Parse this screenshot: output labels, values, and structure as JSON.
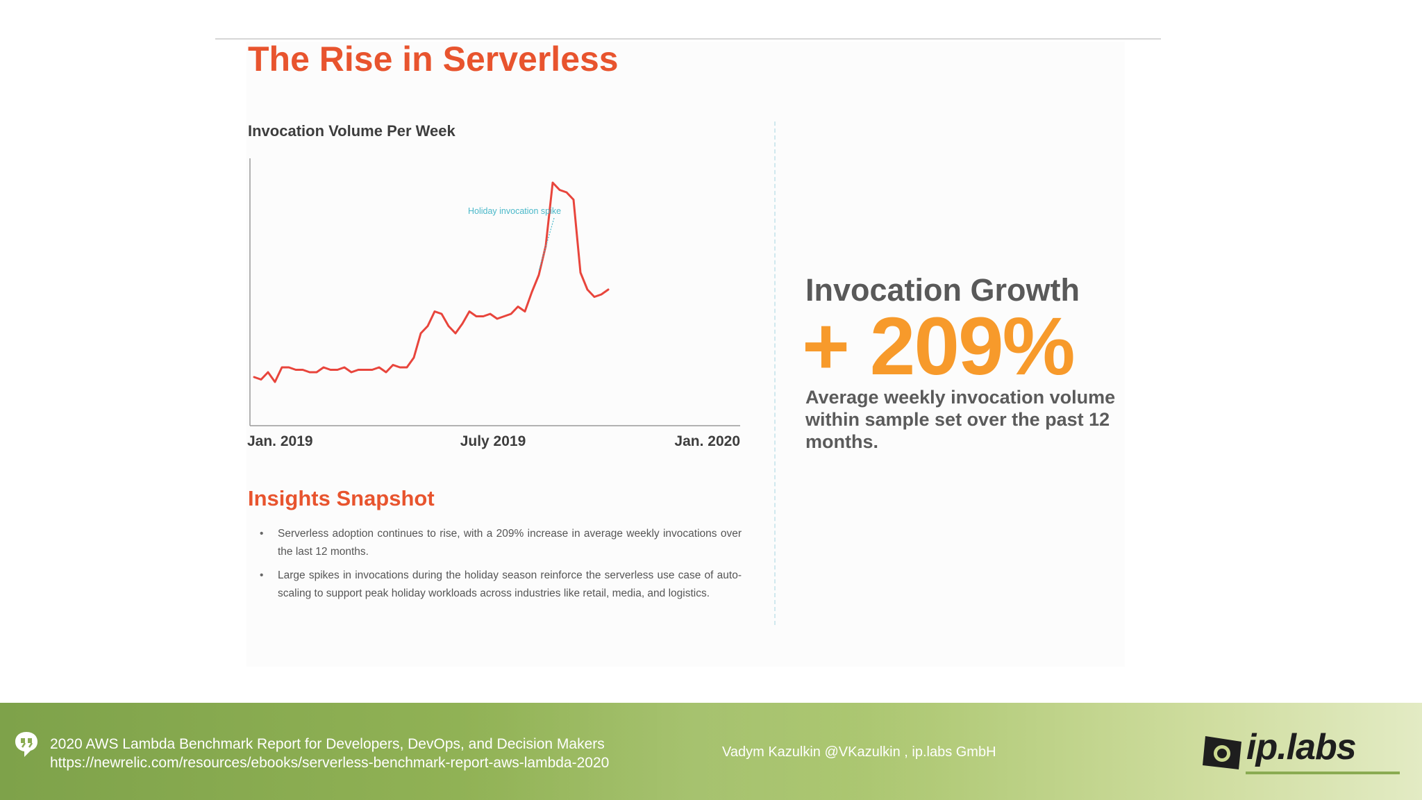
{
  "slide": {
    "title": "The Rise in Serverless"
  },
  "chart": {
    "title": "Invocation Volume Per Week",
    "annotation": "Holiday invocation spike",
    "x_ticks": [
      "Jan. 2019",
      "July 2019",
      "Jan. 2020"
    ]
  },
  "chart_data": {
    "type": "line",
    "title": "Invocation Volume Per Week",
    "xlabel": "",
    "ylabel": "",
    "x_tick_labels": [
      "Jan. 2019",
      "July 2019",
      "Jan. 2020"
    ],
    "x": [
      0,
      1,
      2,
      3,
      4,
      5,
      6,
      7,
      8,
      9,
      10,
      11,
      12,
      13,
      14,
      15,
      16,
      17,
      18,
      19,
      20,
      21,
      22,
      23,
      24,
      25,
      26,
      27,
      28,
      29,
      30,
      31,
      32,
      33,
      34,
      35,
      36,
      37,
      38,
      39,
      40,
      41,
      42,
      43,
      44,
      45,
      46,
      47,
      48,
      49,
      50,
      51
    ],
    "values": [
      20,
      19,
      22,
      18,
      24,
      24,
      23,
      23,
      22,
      22,
      24,
      23,
      23,
      24,
      22,
      23,
      23,
      23,
      24,
      22,
      25,
      24,
      24,
      28,
      38,
      41,
      47,
      46,
      41,
      38,
      42,
      47,
      45,
      45,
      46,
      44,
      45,
      46,
      49,
      47,
      55,
      62,
      74,
      100,
      97,
      96,
      93,
      63,
      56,
      53,
      54,
      56
    ],
    "ylim": [
      0,
      110
    ],
    "grid": false,
    "annotations": [
      {
        "text": "Holiday invocation spike"
      }
    ],
    "series_color": "#e8453c",
    "annotation_color": "#4ab8c9"
  },
  "growth": {
    "label": "Invocation Growth",
    "value": "+ 209%",
    "description": "Average weekly invocation volume within sample set over the past 12 months."
  },
  "insights": {
    "title": "Insights Snapshot",
    "bullet_glyph": "•",
    "items": [
      "Serverless adoption continues to rise, with a 209% increase in average weekly invocations over the last 12 months.",
      "Large spikes in invocations during the holiday season reinforce the serverless use case of auto-scaling to support peak holiday workloads across industries like retail, media, and logistics."
    ]
  },
  "footer": {
    "ref_title": "2020 AWS Lambda Benchmark Report for Developers, DevOps, and Decision Makers",
    "ref_url": "https://newrelic.com/resources/ebooks/serverless-benchmark-report-aws-lambda-2020",
    "author": "Vadym Kazulkin @VKazulkin , ip.labs GmbH",
    "logo_text": "ip.labs"
  },
  "colors": {
    "accent_orange_red": "#e8542e",
    "growth_orange": "#f79a2b",
    "footer_green": "#8aab52"
  }
}
